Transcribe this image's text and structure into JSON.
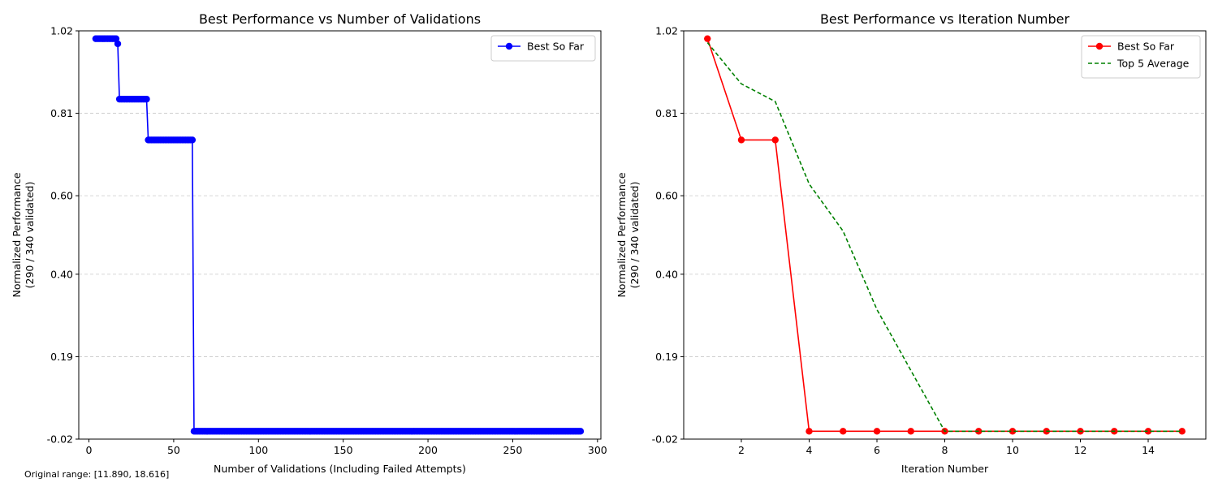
{
  "footnote": "Original range: [11.890, 18.616]",
  "colors": {
    "blue": "#0000ff",
    "red": "#ff0000",
    "green": "#008000",
    "grid": "#c8c8c8"
  },
  "chart_data": [
    {
      "type": "line",
      "title": "Best Performance vs Number of Validations",
      "xlabel": "Number of Validations (Including Failed Attempts)",
      "ylabel": [
        "Normalized Performance",
        "(290 / 340 validated)"
      ],
      "xlim": [
        -6,
        302
      ],
      "ylim": [
        -0.02,
        1.02
      ],
      "xticks": [
        0,
        50,
        100,
        150,
        200,
        250,
        300
      ],
      "yticks": [
        -0.02,
        0.19,
        0.4,
        0.6,
        0.81,
        1.02
      ],
      "ytick_labels": [
        "-0.02",
        "0.19",
        "0.40",
        "0.60",
        "0.81",
        "1.02"
      ],
      "grid": "y-dashed",
      "legend": "top-right",
      "series": [
        {
          "name": "Best So Far",
          "color": "#0000ff",
          "marker": "circle",
          "style": "solid",
          "segments": [
            {
              "x_from": 4,
              "x_to": 16,
              "y": 1.0
            },
            {
              "x_from": 17,
              "x_to": 17,
              "y": 0.987
            },
            {
              "x_from": 18,
              "x_to": 34,
              "y": 0.846
            },
            {
              "x_from": 35,
              "x_to": 61,
              "y": 0.742
            },
            {
              "x_from": 62,
              "x_to": 290,
              "y": 0.0
            }
          ]
        }
      ]
    },
    {
      "type": "line",
      "title": "Best Performance vs Iteration Number",
      "xlabel": "Iteration Number",
      "ylabel": [
        "Normalized Performance",
        "(290 / 340 validated)"
      ],
      "xlim": [
        0.3,
        15.7
      ],
      "ylim": [
        -0.02,
        1.02
      ],
      "xticks": [
        2,
        4,
        6,
        8,
        10,
        12,
        14
      ],
      "yticks": [
        -0.02,
        0.19,
        0.4,
        0.6,
        0.81,
        1.02
      ],
      "ytick_labels": [
        "-0.02",
        "0.19",
        "0.40",
        "0.60",
        "0.81",
        "1.02"
      ],
      "grid": "y-dashed",
      "legend": "top-right",
      "series": [
        {
          "name": "Best So Far",
          "color": "#ff0000",
          "marker": "circle",
          "style": "solid",
          "x": [
            1,
            2,
            3,
            4,
            5,
            6,
            7,
            8,
            9,
            10,
            11,
            12,
            13,
            14,
            15
          ],
          "y": [
            1.0,
            0.742,
            0.742,
            0.0,
            0.0,
            0.0,
            0.0,
            0.0,
            0.0,
            0.0,
            0.0,
            0.0,
            0.0,
            0.0,
            0.0
          ]
        },
        {
          "name": "Top 5 Average",
          "color": "#008000",
          "marker": "none",
          "style": "dashed",
          "x": [
            1,
            2,
            3,
            4,
            5,
            6,
            7,
            8,
            9,
            10,
            11,
            12,
            13,
            14,
            15
          ],
          "y": [
            0.99,
            0.885,
            0.84,
            0.63,
            0.51,
            0.31,
            0.155,
            0.0,
            0.0,
            0.0,
            0.0,
            0.0,
            0.0,
            0.0,
            0.0
          ]
        }
      ]
    }
  ]
}
